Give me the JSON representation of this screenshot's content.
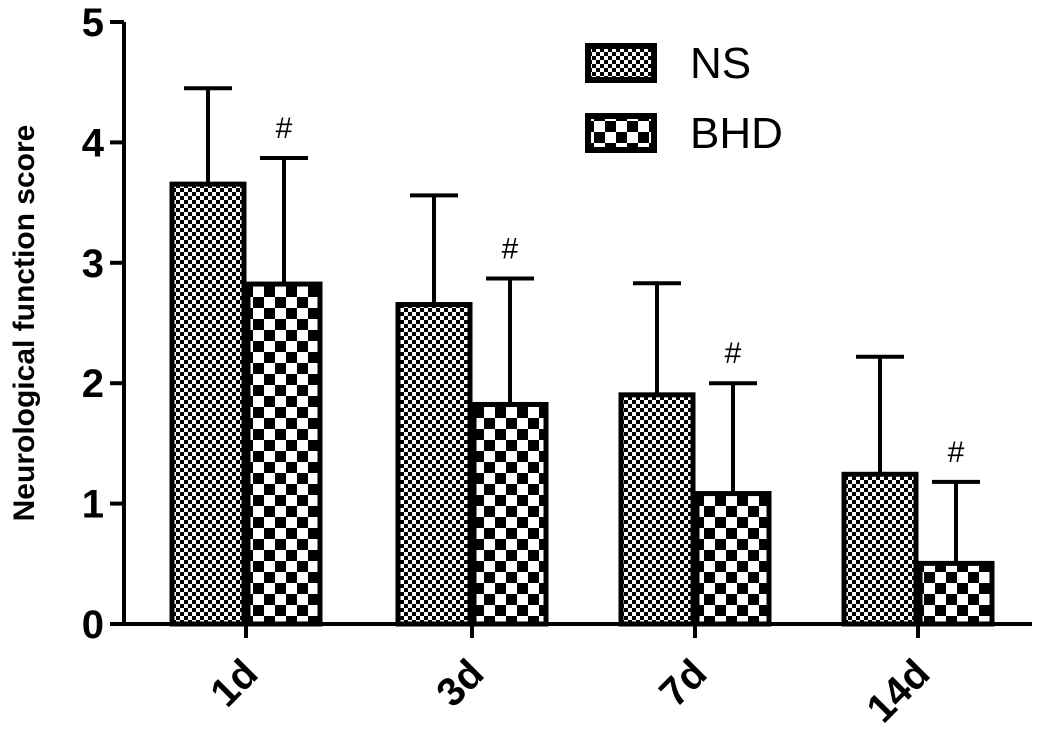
{
  "chart_data": {
    "type": "bar",
    "title": "",
    "xlabel": "",
    "ylabel": "Neurological function score",
    "ylim": [
      0,
      5
    ],
    "yticks": [
      "0",
      "1",
      "2",
      "3",
      "4",
      "5"
    ],
    "categories": [
      "1d",
      "3d",
      "7d",
      "14d"
    ],
    "series": [
      {
        "name": "NS",
        "values": [
          3.67,
          2.67,
          1.92,
          1.26
        ],
        "errors": [
          0.78,
          0.89,
          0.91,
          0.96
        ],
        "pattern": "fine-checker"
      },
      {
        "name": "BHD",
        "values": [
          2.84,
          1.84,
          1.1,
          0.52
        ],
        "errors": [
          1.03,
          1.03,
          0.9,
          0.66
        ],
        "pattern": "coarse-checker"
      }
    ],
    "annotations": [
      "#",
      "#",
      "#",
      "#"
    ],
    "legend_position": "top-right",
    "grid": false,
    "colors": {
      "bar_fill": "#ffffff",
      "pattern": "#000000",
      "stroke": "#000000"
    }
  }
}
